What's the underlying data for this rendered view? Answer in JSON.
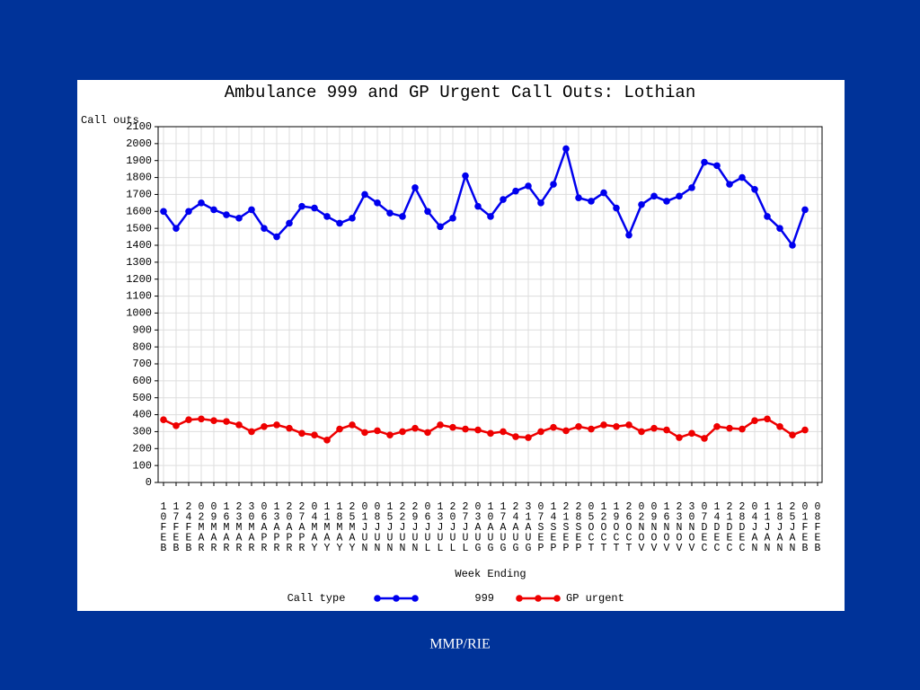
{
  "chart_data": {
    "type": "line",
    "title": "Ambulance 999 and GP Urgent Call Outs: Lothian",
    "y_label": "Call outs",
    "x_label": "Week Ending",
    "legend_title": "Call type",
    "legend": "bottom",
    "grid": true,
    "footer": "MMP/RIE",
    "categories": [
      "10FEB",
      "17FEB",
      "24FEB",
      "02MAR",
      "09MAR",
      "16MAR",
      "23MAR",
      "30MAR",
      "06APR",
      "13APR",
      "20APR",
      "27APR",
      "04MAY",
      "11MAY",
      "18MAY",
      "25MAY",
      "01JUN",
      "08JUN",
      "15JUN",
      "22JUN",
      "29JUN",
      "06JUL",
      "13JUL",
      "20JUL",
      "27JUL",
      "03AUG",
      "10AUG",
      "17AUG",
      "24AUG",
      "31AUG",
      "07SEP",
      "14SEP",
      "21SEP",
      "28SEP",
      "05OCT",
      "12OCT",
      "19OCT",
      "26OCT",
      "02NOV",
      "09NOV",
      "16NOV",
      "23NOV",
      "30NOV",
      "07DEC",
      "14DEC",
      "21DEC",
      "28DEC",
      "04JAN",
      "11JAN",
      "18JAN",
      "25JAN",
      "01FEB",
      "08FEB"
    ],
    "series": [
      {
        "name": "999",
        "color": "#0000ee",
        "values": [
          1600,
          1500,
          1600,
          1650,
          1610,
          1580,
          1560,
          1610,
          1500,
          1450,
          1530,
          1630,
          1620,
          1570,
          1530,
          1560,
          1700,
          1650,
          1590,
          1570,
          1740,
          1600,
          1510,
          1560,
          1810,
          1630,
          1570,
          1670,
          1720,
          1750,
          1650,
          1760,
          1970,
          1680,
          1660,
          1710,
          1620,
          1460,
          1640,
          1690,
          1660,
          1690,
          1740,
          1890,
          1870,
          1760,
          1800,
          1730,
          1570,
          1500,
          1400,
          1610,
          null
        ]
      },
      {
        "name": "GP urgent",
        "color": "#ee0000",
        "values": [
          370,
          335,
          370,
          375,
          365,
          360,
          340,
          300,
          330,
          340,
          320,
          290,
          280,
          250,
          315,
          340,
          295,
          305,
          280,
          300,
          320,
          295,
          340,
          325,
          315,
          310,
          290,
          300,
          270,
          265,
          300,
          325,
          305,
          330,
          315,
          340,
          330,
          340,
          300,
          320,
          310,
          265,
          290,
          260,
          330,
          320,
          315,
          365,
          375,
          330,
          280,
          310,
          null
        ]
      }
    ],
    "ylim": [
      0,
      2100
    ],
    "yticks": [
      0,
      100,
      200,
      300,
      400,
      500,
      600,
      700,
      800,
      900,
      1000,
      1100,
      1200,
      1300,
      1400,
      1500,
      1600,
      1700,
      1800,
      1900,
      2000,
      2100
    ]
  }
}
